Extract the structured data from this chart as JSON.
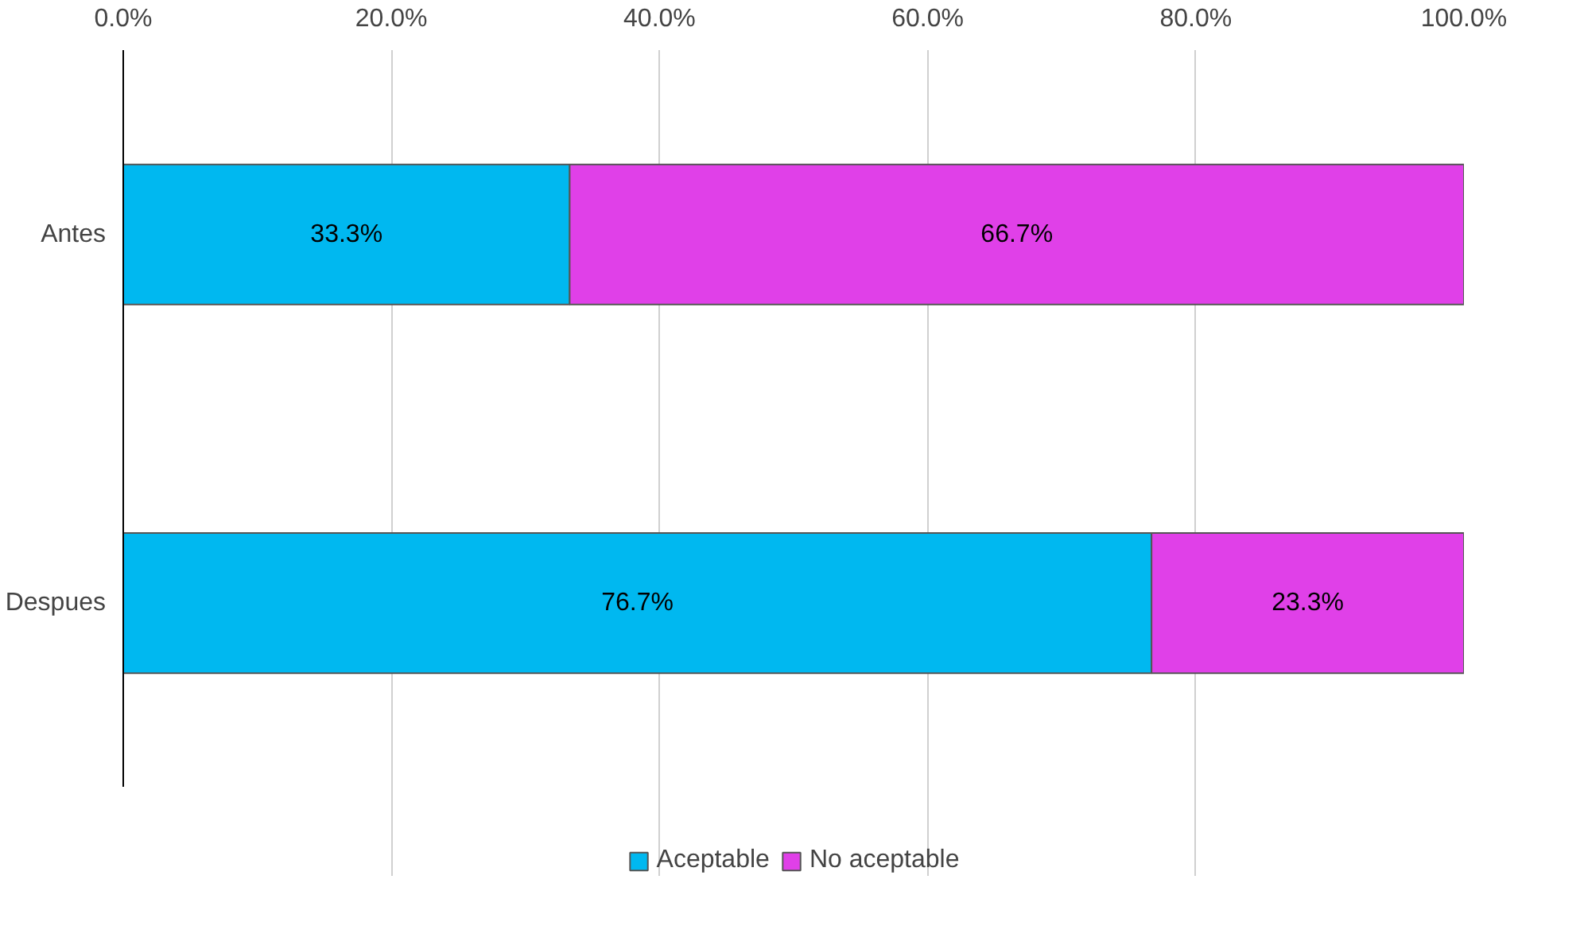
{
  "chart_data": {
    "type": "bar",
    "orientation": "horizontal",
    "stacked": true,
    "categories": [
      "Antes",
      "Despues"
    ],
    "series": [
      {
        "name": "Aceptable",
        "color": "#00b8f0",
        "values": [
          33.3,
          76.7
        ],
        "value_labels": [
          "33.3%",
          "76.7%"
        ]
      },
      {
        "name": "No aceptable",
        "color": "#e040e8",
        "values": [
          66.7,
          23.3
        ],
        "value_labels": [
          "66.7%",
          "23.3%"
        ]
      }
    ],
    "xlim": [
      0,
      100
    ],
    "xticks": [
      {
        "value": 0,
        "label": "0.0%"
      },
      {
        "value": 20,
        "label": "20.0%"
      },
      {
        "value": 40,
        "label": "40.0%"
      },
      {
        "value": 60,
        "label": "60.0%"
      },
      {
        "value": 80,
        "label": "80.0%"
      },
      {
        "value": 100,
        "label": "100.0%"
      }
    ],
    "grid": "x",
    "legend": "bottom"
  }
}
